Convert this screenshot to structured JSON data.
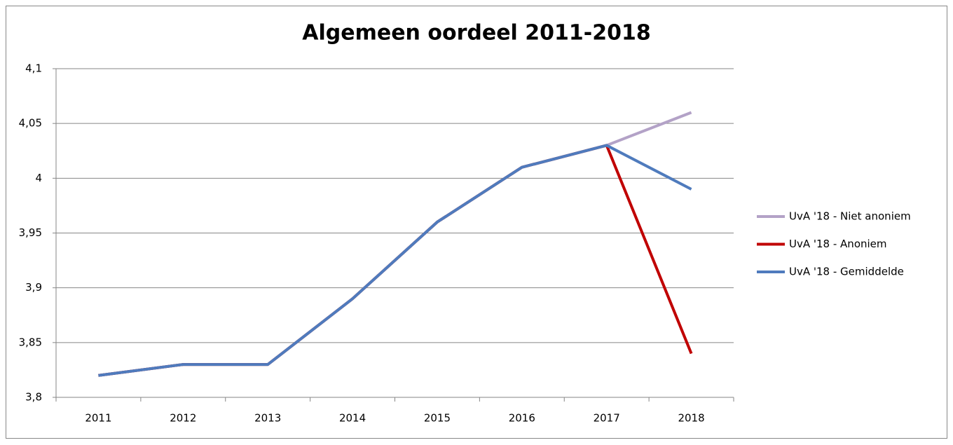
{
  "chart_data": {
    "type": "line",
    "title": "Algemeen oordeel 2011-2018",
    "categories": [
      "2011",
      "2012",
      "2013",
      "2014",
      "2015",
      "2016",
      "2017",
      "2018"
    ],
    "series": [
      {
        "name": "UvA '18 - Niet anoniem",
        "color": "#b3a2c7",
        "values": [
          3.82,
          3.83,
          3.83,
          3.89,
          3.96,
          4.01,
          4.03,
          4.06
        ]
      },
      {
        "name": "UvA '18 - Anoniem",
        "color": "#c00000",
        "values": [
          3.82,
          3.83,
          3.83,
          3.89,
          3.96,
          4.01,
          4.03,
          3.84
        ]
      },
      {
        "name": "UvA '18 - Gemiddelde",
        "color": "#4f7bbd",
        "values": [
          3.82,
          3.83,
          3.83,
          3.89,
          3.96,
          4.01,
          4.03,
          3.99
        ]
      }
    ],
    "ylim": [
      3.8,
      4.1
    ],
    "yticks": [
      {
        "value": 3.8,
        "label": "3,8"
      },
      {
        "value": 3.85,
        "label": "3,85"
      },
      {
        "value": 3.9,
        "label": "3,9"
      },
      {
        "value": 3.95,
        "label": "3,95"
      },
      4,
      {
        "value": 4.05,
        "label": "4,05"
      },
      {
        "value": 4.1,
        "label": "4,1"
      }
    ],
    "grid": true,
    "legend": "right"
  }
}
